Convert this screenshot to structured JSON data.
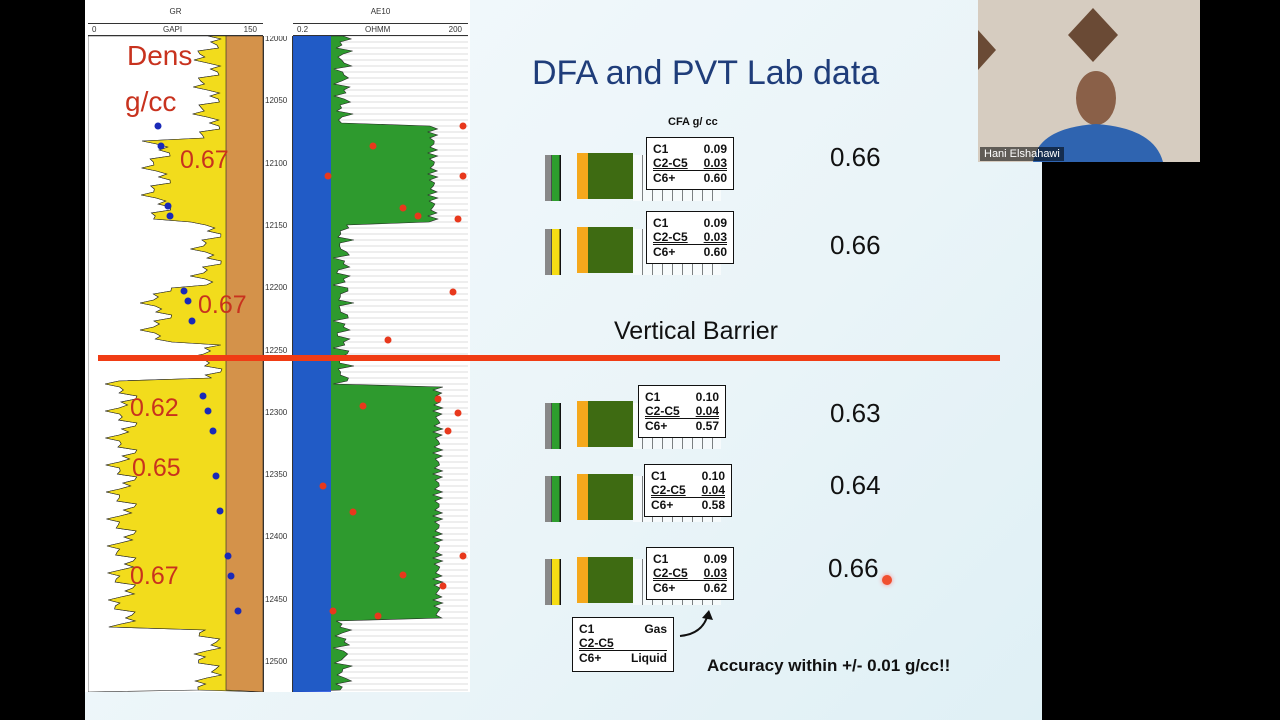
{
  "slide": {
    "title": "DFA and PVT Lab data",
    "log_tracks": {
      "gr": {
        "name": "GR",
        "unit": "GAPI",
        "min": "0",
        "max": "150"
      },
      "res": {
        "name": "AE10",
        "unit": "OHMM",
        "min": "0.2",
        "max": "200"
      },
      "depths": [
        "12000",
        "12050",
        "12100",
        "12150",
        "12200",
        "12250",
        "12300",
        "12350",
        "12400",
        "12450",
        "12500"
      ]
    },
    "dens_label": [
      "Dens",
      "g/cc"
    ],
    "log_density_values": [
      "0.67",
      "0.67",
      "0.62",
      "0.65",
      "0.67"
    ],
    "cfa_header": "CFA g/ cc",
    "samples_above": [
      {
        "c1": "0.09",
        "c2c5": "0.03",
        "c6": "0.60",
        "pvt": "0.66"
      },
      {
        "c1": "0.09",
        "c2c5": "0.03",
        "c6": "0.60",
        "pvt": "0.66"
      }
    ],
    "barrier_label": "Vertical Barrier",
    "samples_below": [
      {
        "c1": "0.10",
        "c2c5": "0.04",
        "c6": "0.57",
        "pvt": "0.63"
      },
      {
        "c1": "0.10",
        "c2c5": "0.04",
        "c6": "0.58",
        "pvt": "0.64"
      },
      {
        "c1": "0.09",
        "c2c5": "0.03",
        "c6": "0.62",
        "pvt": "0.66"
      }
    ],
    "labels": {
      "c1": "C1",
      "c2c5": "C2-C5",
      "c6": "C6+"
    },
    "legend": {
      "c1": "C1",
      "gas": "Gas",
      "c2c5": "C2-C5",
      "c6": "C6+",
      "liquid": "Liquid"
    },
    "accuracy_note": "Accuracy within +/- 0.01 g/cc!!"
  },
  "video": {
    "participant_name": "Hani Elshahawi"
  },
  "colors": {
    "title": "#1f3d7a",
    "barrier_line": "#f03c14",
    "density_text": "#c8321e",
    "gas_green": "#2e9e2e",
    "oil_green": "#3e6b12"
  }
}
